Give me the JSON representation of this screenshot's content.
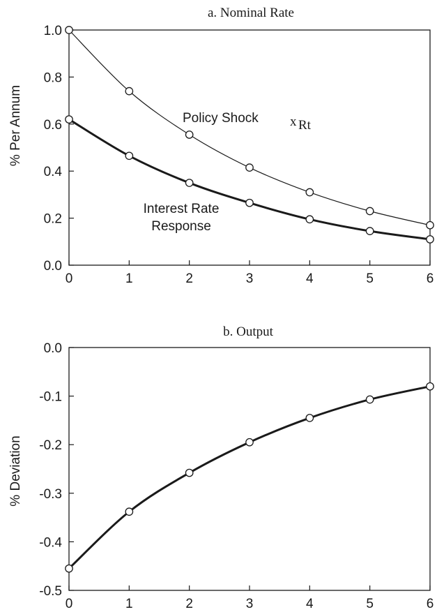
{
  "chart_data": [
    {
      "type": "line",
      "title": "a.  Nominal Rate",
      "xlabel": "",
      "ylabel": "% Per Annum",
      "xlim": [
        0,
        6
      ],
      "ylim": [
        0,
        1.0
      ],
      "x": [
        0,
        1,
        2,
        3,
        4,
        5,
        6
      ],
      "xticks": [
        "0",
        "1",
        "2",
        "3",
        "4",
        "5",
        "6"
      ],
      "yticks": [
        0,
        0.2,
        0.4,
        0.6,
        0.8,
        1.0
      ],
      "yticklabels": [
        "0.0",
        "0.2",
        "0.4",
        "0.6",
        "0.8",
        "1.0"
      ],
      "grid": false,
      "series": [
        {
          "label": "Policy Shock",
          "label_symbol": "x",
          "label_subscript": "Rt",
          "values": [
            1.0,
            0.74,
            0.555,
            0.415,
            0.31,
            0.23,
            0.17
          ],
          "line_weight": "thin"
        },
        {
          "label_line1": "Interest Rate",
          "label_line2": "Response",
          "values": [
            0.62,
            0.465,
            0.35,
            0.265,
            0.195,
            0.145,
            0.11
          ],
          "line_weight": "thick"
        }
      ]
    },
    {
      "type": "line",
      "title": "b.  Output",
      "xlabel": "",
      "ylabel": "% Deviation",
      "xlim": [
        0,
        6
      ],
      "ylim": [
        -0.5,
        0.0
      ],
      "x": [
        0,
        1,
        2,
        3,
        4,
        5,
        6
      ],
      "xticks": [
        "0",
        "1",
        "2",
        "3",
        "4",
        "5",
        "6"
      ],
      "yticks": [
        -0.5,
        -0.4,
        -0.3,
        -0.2,
        -0.1,
        0.0
      ],
      "yticklabels": [
        "-0.5",
        "-0.4",
        "-0.3",
        "-0.2",
        "-0.1",
        "0.0"
      ],
      "grid": false,
      "series": [
        {
          "values": [
            -0.455,
            -0.338,
            -0.258,
            -0.195,
            -0.145,
            -0.107,
            -0.08
          ],
          "line_weight": "thick"
        }
      ]
    }
  ],
  "colors": {
    "ink": "#1a1a1a",
    "background": "#ffffff",
    "marker_fill": "#ffffff"
  }
}
